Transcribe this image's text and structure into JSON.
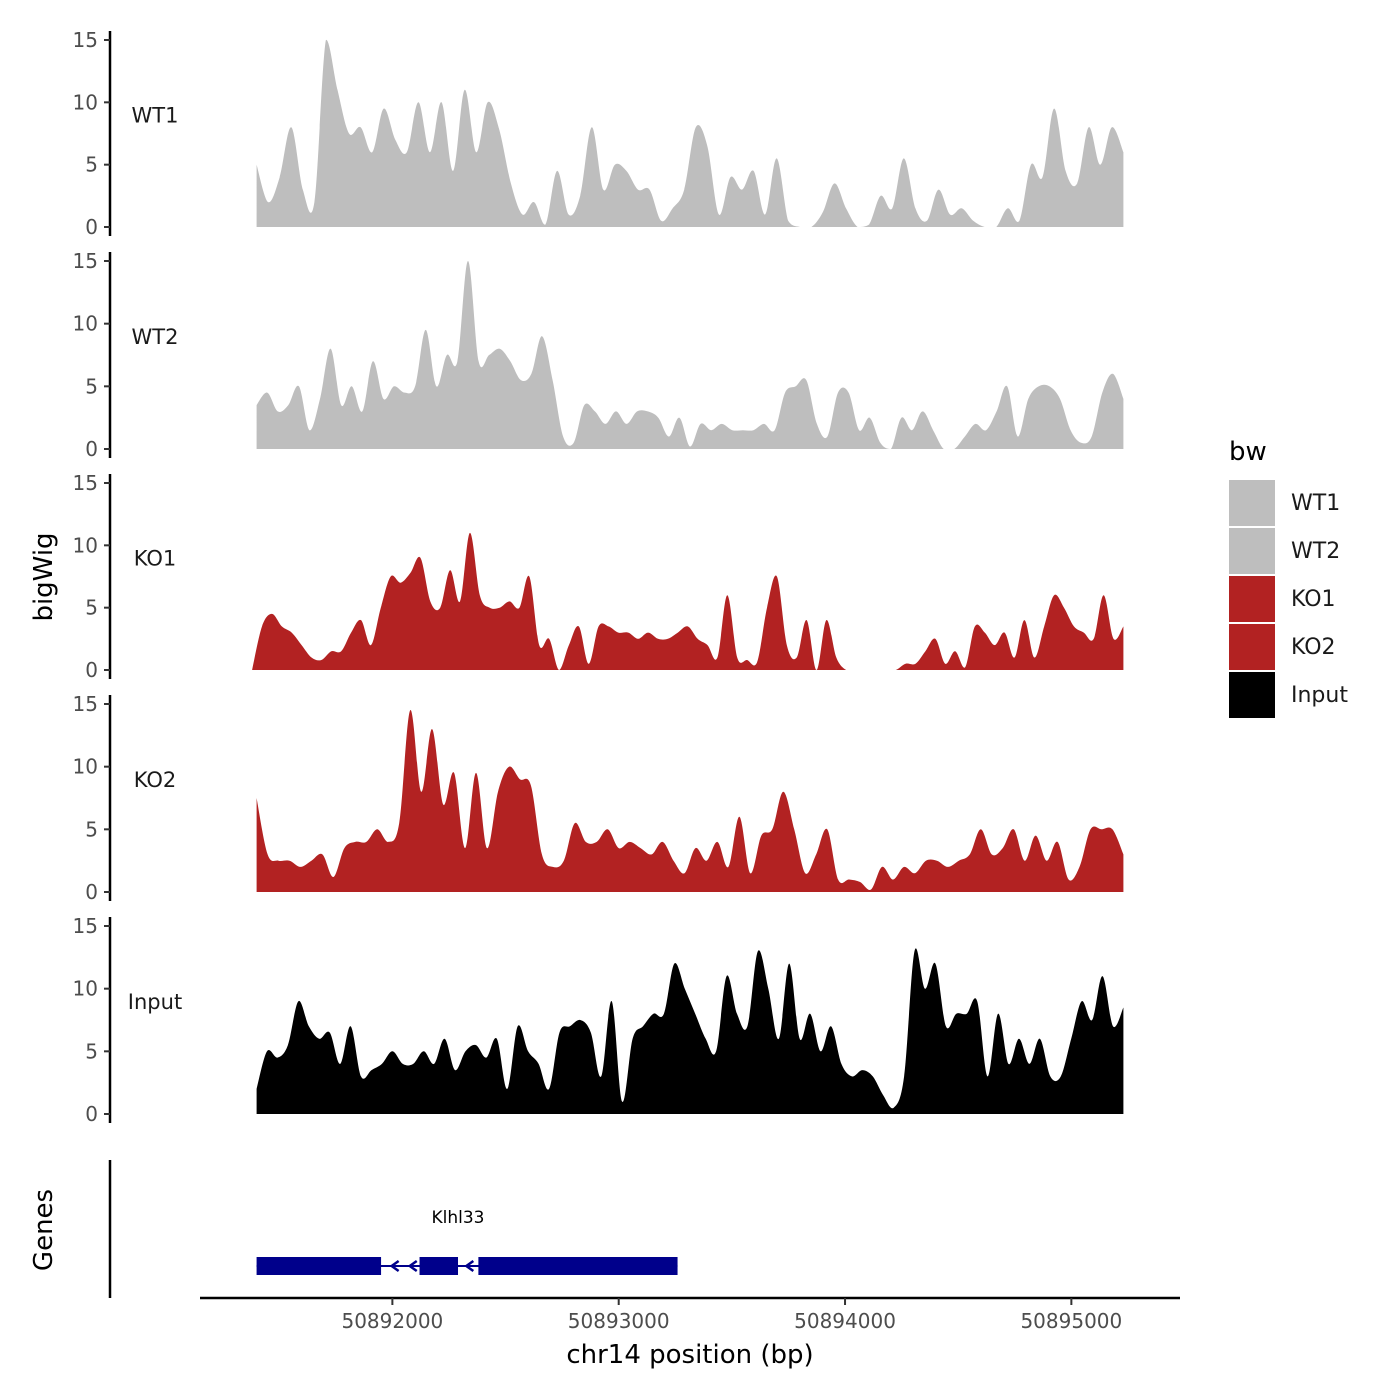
{
  "chart_data": {
    "type": "area",
    "x_axis": {
      "label": "chr14 position (bp)",
      "range": [
        50891150,
        50895480
      ],
      "ticks": [
        50892000,
        50893000,
        50894000,
        50895000
      ],
      "tick_labels": [
        "50892000",
        "50893000",
        "50894000",
        "50895000"
      ]
    },
    "y_axis": {
      "label": "bigWig",
      "range": [
        0,
        15
      ],
      "ticks": [
        0,
        5,
        10,
        15
      ],
      "tick_labels": [
        "0",
        "5",
        "10",
        "15"
      ]
    },
    "genes_panel": {
      "label": "Genes",
      "gene_name": "Klhl33",
      "exons": [
        [
          50891400,
          50891950
        ],
        [
          50892120,
          50892290
        ],
        [
          50892380,
          50893260
        ]
      ],
      "intron_arrows": [
        50892010,
        50892090,
        50892340
      ],
      "color": "#00008B"
    },
    "legend": {
      "title": "bw",
      "position": "right",
      "entries": [
        {
          "label": "WT1",
          "color": "#BEBEBE"
        },
        {
          "label": "WT2",
          "color": "#BEBEBE"
        },
        {
          "label": "KO1",
          "color": "#B22222"
        },
        {
          "label": "KO2",
          "color": "#B22222"
        },
        {
          "label": "Input",
          "color": "#000000"
        }
      ]
    },
    "series": [
      {
        "name": "WT1",
        "color": "#BEBEBE",
        "x_start": 50891400,
        "x_end": 50895230,
        "values": [
          5,
          2,
          4,
          8,
          3,
          2,
          15,
          11,
          7.5,
          8,
          6,
          9.5,
          7,
          6,
          10,
          6,
          10,
          4.5,
          11,
          6,
          10,
          7.8,
          3.5,
          1,
          2,
          0.2,
          4.5,
          1,
          2.5,
          8,
          3,
          5,
          4.5,
          3,
          3,
          0.5,
          1.5,
          3,
          8,
          6.5,
          1,
          4,
          3,
          4.5,
          1,
          5.5,
          0.5,
          0,
          0,
          1.2,
          3.5,
          1.5,
          0,
          0.2,
          2.5,
          1.5,
          5.5,
          1.5,
          0.5,
          3,
          1,
          1.5,
          0.5,
          0,
          0,
          1.5,
          0.5,
          5,
          4,
          9.5,
          4.5,
          3.5,
          8,
          5,
          8,
          6
        ]
      },
      {
        "name": "WT2",
        "color": "#BEBEBE",
        "x_start": 50891400,
        "x_end": 50895230,
        "values": [
          3.5,
          4.5,
          3,
          3.5,
          5,
          1.5,
          4,
          8,
          3.5,
          5,
          3,
          7,
          4,
          5,
          4.5,
          5,
          9.5,
          5,
          7.5,
          7,
          15,
          7,
          7.5,
          8,
          7,
          5.5,
          6,
          9,
          5.5,
          1,
          0.5,
          3.5,
          3,
          2,
          3,
          2,
          3,
          3,
          2.5,
          1,
          2.5,
          0.2,
          2,
          1.5,
          2,
          1.5,
          1.5,
          1.5,
          2,
          1.5,
          4.5,
          5,
          5.5,
          2,
          1,
          4.5,
          4.5,
          1.5,
          2.5,
          0.5,
          0,
          2.5,
          1.5,
          3,
          1.5,
          0,
          0,
          1,
          2,
          1.5,
          3,
          5,
          1,
          4,
          5,
          5,
          4,
          1.5,
          0.5,
          1,
          4.5,
          6,
          4
        ]
      },
      {
        "name": "KO1",
        "color": "#B22222",
        "x_start": 50891380,
        "x_end": 50895230,
        "values": [
          0,
          3.5,
          4.5,
          3.5,
          3,
          2,
          1,
          0.8,
          1.5,
          1.5,
          3,
          4,
          2,
          5,
          7.5,
          7,
          7.8,
          9,
          5.5,
          5,
          8,
          5.5,
          11,
          6,
          5,
          5,
          5.5,
          5,
          7.5,
          2,
          2.5,
          0,
          2,
          3.5,
          0.5,
          3.5,
          3.5,
          3,
          3,
          2.5,
          3,
          2.5,
          2.5,
          3,
          3.5,
          2.5,
          2,
          1,
          6,
          1,
          0.8,
          0.6,
          5,
          7.5,
          2,
          1,
          4,
          0,
          4,
          1,
          0,
          0,
          0,
          0,
          0,
          0,
          0.5,
          0.5,
          1.5,
          2.5,
          0.5,
          1.5,
          0.2,
          3.5,
          3,
          2,
          3,
          1,
          4,
          1,
          3.5,
          6,
          5,
          3.5,
          3,
          2.5,
          6,
          2.5,
          3.5
        ]
      },
      {
        "name": "KO2",
        "color": "#B22222",
        "x_start": 50891400,
        "x_end": 50895230,
        "values": [
          7.5,
          3,
          2.5,
          2.5,
          2,
          2.5,
          3,
          1.2,
          3.5,
          4,
          4,
          5,
          4,
          5.5,
          14.5,
          8,
          13,
          7,
          9.5,
          3.5,
          9.5,
          3.5,
          8,
          10,
          9,
          8.5,
          3,
          2,
          2.5,
          5.5,
          4,
          4,
          5,
          3.5,
          4,
          3.5,
          3,
          4,
          2.5,
          1.5,
          3.5,
          2.5,
          4,
          2,
          6,
          1.5,
          4.5,
          5,
          8,
          5,
          1.5,
          3,
          5,
          1,
          1,
          0.8,
          0.2,
          2,
          1,
          2,
          1.5,
          2.5,
          2.5,
          2,
          2.5,
          3,
          5,
          3,
          3.5,
          5,
          2.5,
          4.5,
          2.5,
          4,
          1,
          2,
          5,
          5,
          5,
          3
        ]
      },
      {
        "name": "Input",
        "color": "#000000",
        "x_start": 50891400,
        "x_end": 50895230,
        "values": [
          2,
          5,
          4.5,
          5.5,
          9,
          7,
          6,
          6.5,
          4,
          7,
          3,
          3.5,
          4,
          5,
          4,
          4,
          5,
          4,
          6,
          3.5,
          5,
          5.5,
          4.5,
          6,
          2,
          7,
          5,
          4,
          2,
          6.5,
          7,
          7.5,
          6.5,
          3,
          9,
          1,
          6,
          7,
          8,
          8,
          12,
          10,
          8,
          6,
          5,
          11,
          8,
          7,
          13,
          10,
          6,
          12,
          6,
          8,
          5,
          7,
          4,
          3,
          3.5,
          3,
          1.5,
          0.5,
          3,
          13,
          10,
          12,
          7,
          8,
          8,
          9,
          3,
          8,
          4,
          6,
          4,
          6,
          3,
          3,
          6,
          9,
          7.5,
          11,
          7,
          8.5
        ]
      }
    ]
  }
}
